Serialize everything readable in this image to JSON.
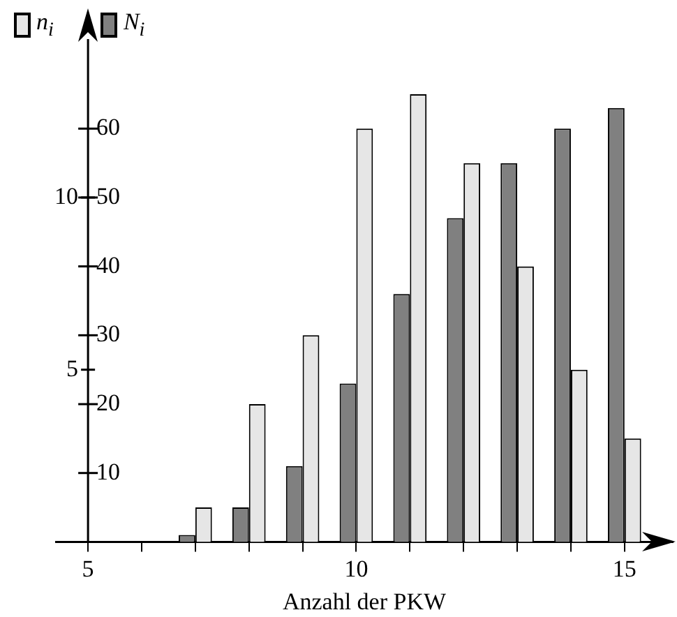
{
  "chart_data": {
    "type": "bar",
    "xlabel": "Anzahl der PKW",
    "x": [
      7,
      8,
      9,
      10,
      11,
      12,
      13,
      14,
      15
    ],
    "series": [
      {
        "name": "n$_{i}$",
        "color": "#e6e6e6",
        "values": [
          5,
          20,
          30,
          60,
          65,
          55,
          40,
          25,
          15
        ]
      },
      {
        "name": "N$_{i}$",
        "color": "#808080",
        "axis": "y2",
        "values": [
          0.2,
          1,
          2.2,
          4.6,
          7.2,
          9.4,
          11,
          12,
          12.6
        ]
      }
    ],
    "xlim": [
      4.4,
      15.9
    ],
    "xticks": [
      5,
      {
        "value": 6,
        "label": null
      },
      {
        "value": 7,
        "label": null
      },
      {
        "value": 8,
        "label": null
      },
      {
        "value": 9,
        "label": null
      },
      10,
      {
        "value": 11,
        "label": null
      },
      {
        "value": 12,
        "label": null
      },
      {
        "value": 13,
        "label": null
      },
      {
        "value": 14,
        "label": null
      },
      15
    ],
    "ylim": [
      0,
      73
    ],
    "yticks": [
      10,
      20,
      30,
      40,
      50,
      60
    ],
    "y2lim": [
      0,
      14.6
    ],
    "y2ticks": [
      5,
      10
    ],
    "legend": "top left",
    "grid": false
  }
}
